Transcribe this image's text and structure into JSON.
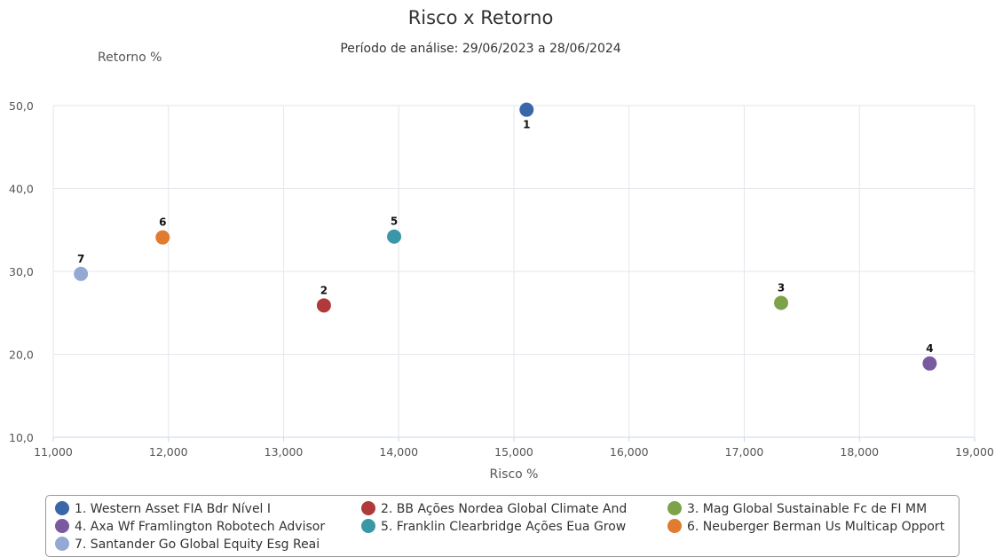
{
  "chart_data": {
    "type": "scatter",
    "title": "Risco x Retorno",
    "subtitle": "Período de análise: 29/06/2023 a 28/06/2024",
    "xlabel": "Risco %",
    "ylabel": "Retorno %",
    "xlim": [
      11.0,
      19.0
    ],
    "ylim": [
      10.0,
      50.0
    ],
    "x_ticks": [
      "11,000",
      "12,000",
      "13,000",
      "14,000",
      "15,000",
      "16,000",
      "17,000",
      "18,000",
      "19,000"
    ],
    "y_ticks": [
      "10,0",
      "20,0",
      "30,0",
      "40,0",
      "50,0"
    ],
    "grid": true,
    "legend_position": "bottom",
    "series": [
      {
        "label": "1",
        "name": "1. Western Asset FIA Bdr Nível I",
        "color": "#3a67a8",
        "x": 15.11,
        "y": 49.5
      },
      {
        "label": "2",
        "name": "2. BB Ações Nordea Global Climate And",
        "color": "#b03a3a",
        "x": 13.35,
        "y": 25.9
      },
      {
        "label": "3",
        "name": "3. Mag Global Sustainable Fc de FI MM",
        "color": "#7da34a",
        "x": 17.32,
        "y": 26.2
      },
      {
        "label": "4",
        "name": "4. Axa Wf Framlington Robotech Advisor",
        "color": "#7a5a9e",
        "x": 18.61,
        "y": 18.9
      },
      {
        "label": "5",
        "name": "5. Franklin Clearbridge Ações Eua Grow",
        "color": "#3a97a8",
        "x": 13.96,
        "y": 34.2
      },
      {
        "label": "6",
        "name": "6. Neuberger Berman Us Multicap Opport",
        "color": "#e07b30",
        "x": 11.95,
        "y": 34.1
      },
      {
        "label": "7",
        "name": "7. Santander Go Global Equity Esg Reai",
        "color": "#93a9d4",
        "x": 11.24,
        "y": 29.7
      }
    ]
  }
}
